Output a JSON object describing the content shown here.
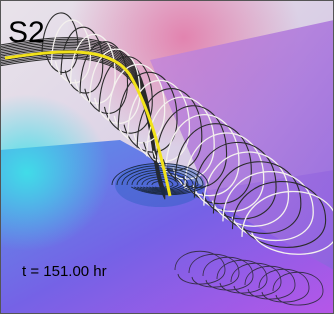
{
  "labels": {
    "panel": "S2",
    "time": "t = 151.00 hr"
  }
}
